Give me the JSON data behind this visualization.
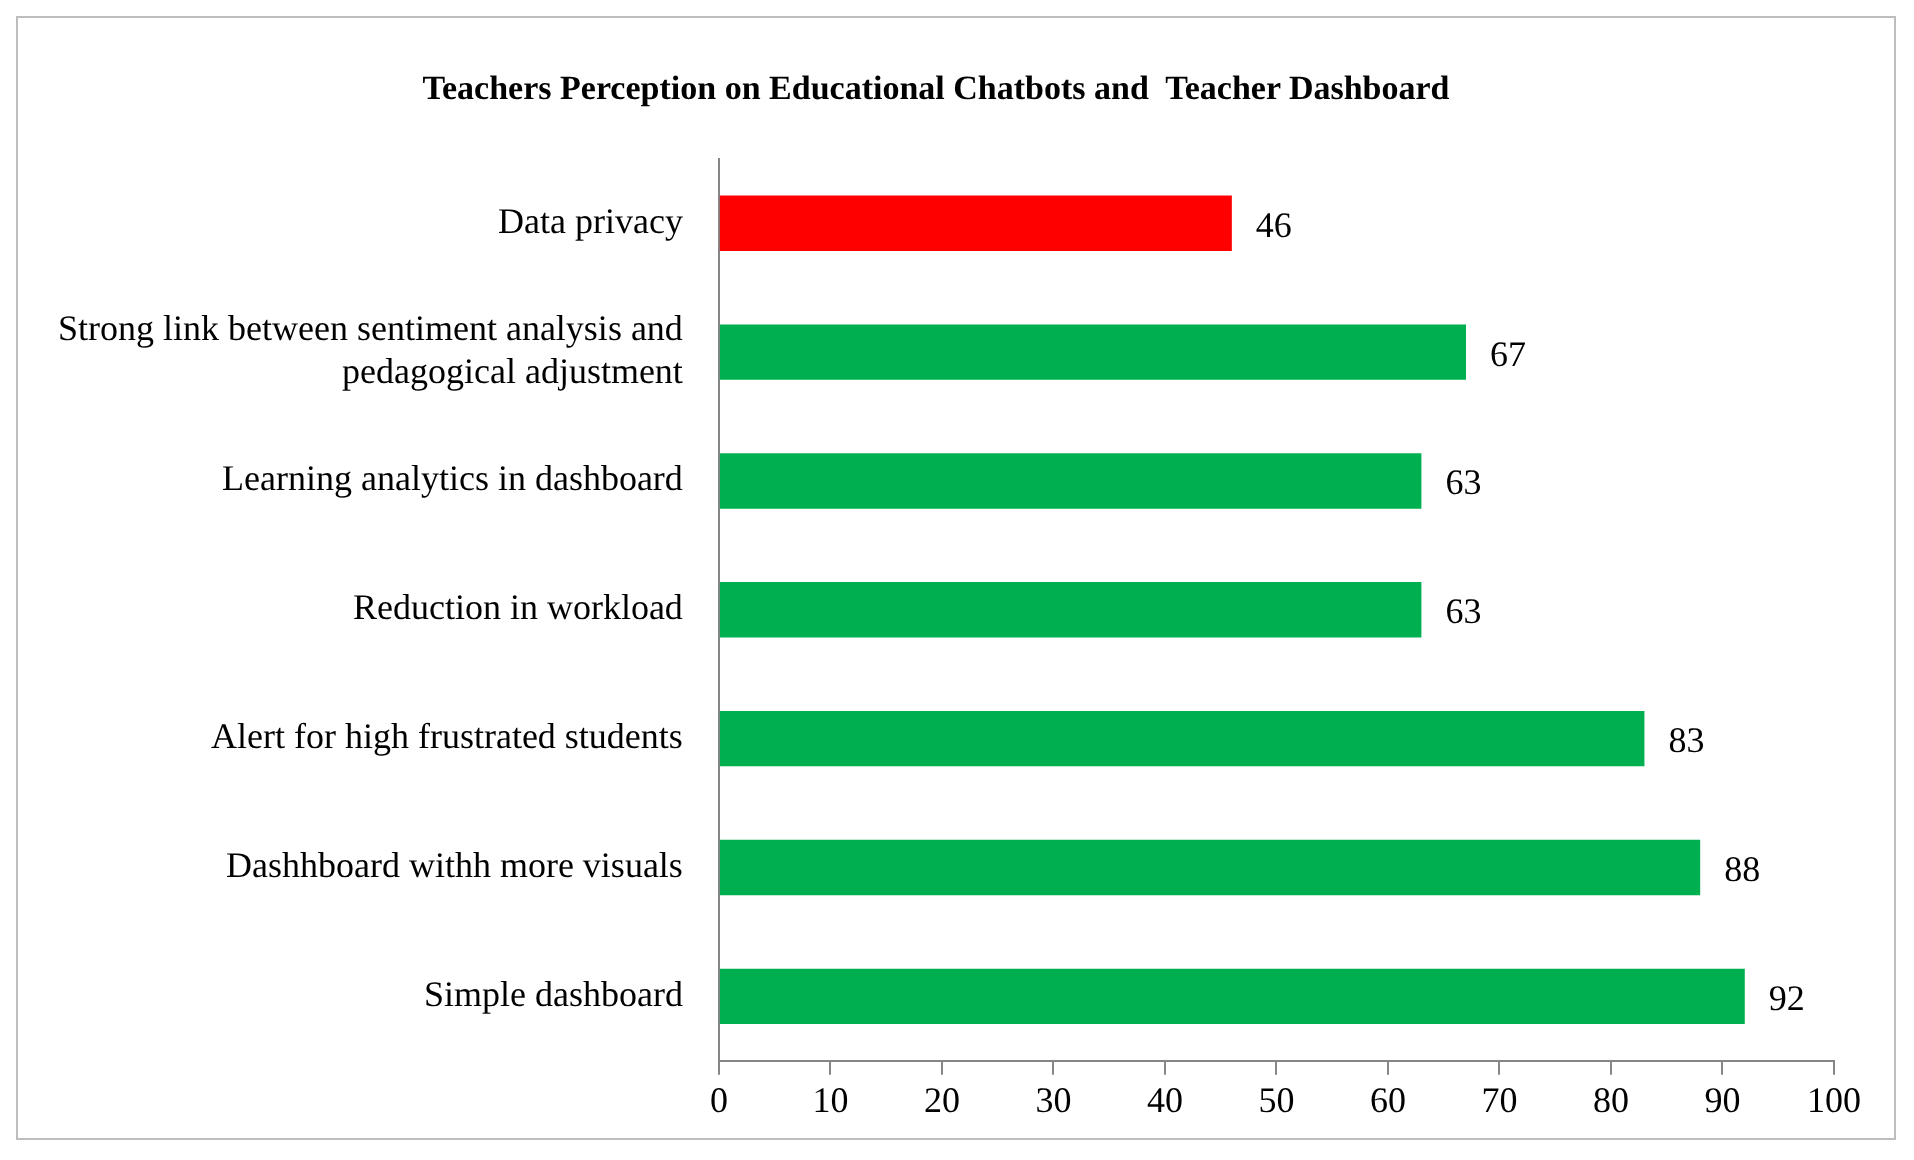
{
  "chart_data": {
    "type": "bar",
    "orientation": "horizontal",
    "title": "Teachers Perception on Educational Chatbots and  Teacher Dashboard",
    "categories": [
      "Data privacy",
      "Strong link between sentiment analysis and pedagogical adjustment",
      "Learning analytics in dashboard",
      "Reduction in workload",
      "Alert for high frustrated students",
      "Dashhboard withh more visuals",
      "Simple dashboard"
    ],
    "values": [
      46,
      67,
      63,
      63,
      83,
      88,
      92
    ],
    "colors": [
      "#ff0000",
      "#00b050",
      "#00b050",
      "#00b050",
      "#00b050",
      "#00b050",
      "#00b050"
    ],
    "xlim": [
      0,
      100
    ],
    "xticks": [
      0,
      10,
      20,
      30,
      40,
      50,
      60,
      70,
      80,
      90,
      100
    ],
    "grid": false,
    "legend": false,
    "data_labels": true
  }
}
